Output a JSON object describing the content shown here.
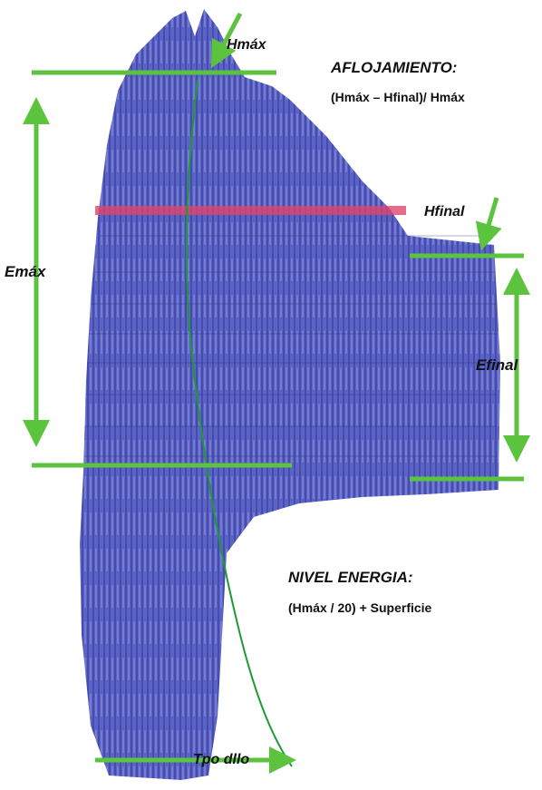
{
  "annotations": {
    "hmax": "Hmáx",
    "aflojamiento_title": "AFLOJAMIENTO:",
    "aflojamiento_formula": "(Hmáx – Hfinal)/ Hmáx",
    "hfinal": "Hfinal",
    "emax": "Emáx",
    "efinal": "Efinal",
    "energia_title": "NIVEL ENERGIA:",
    "energia_formula": "(Hmáx / 20) + Superficie",
    "tpo": "Tpo dllo"
  }
}
